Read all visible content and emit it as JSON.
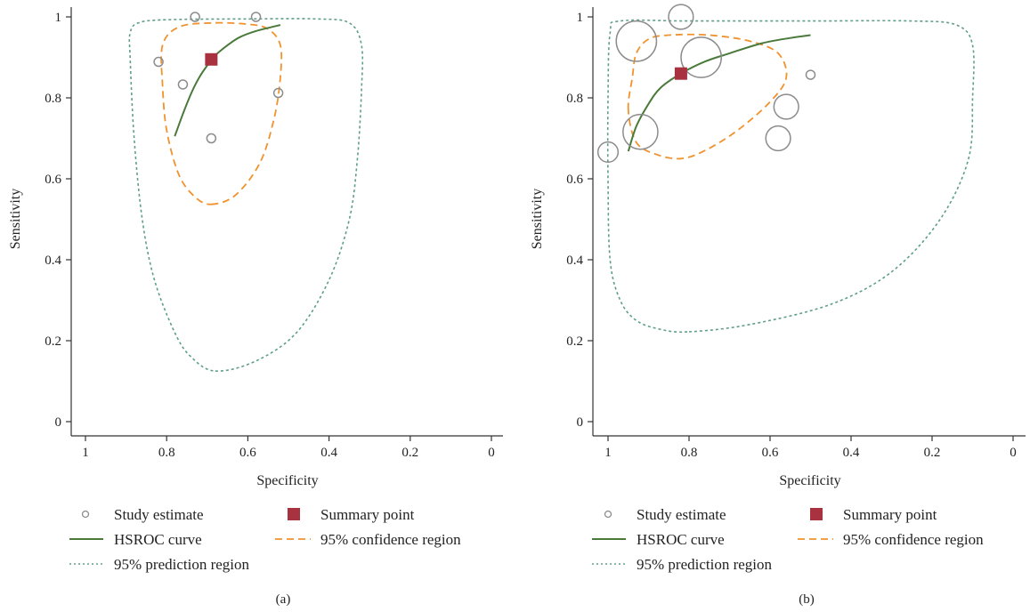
{
  "colors": {
    "study": "#8c8c8c",
    "summary": "#a83240",
    "hsroc": "#4a7a3a",
    "confidence": "#f0922e",
    "prediction": "#5f9e8c",
    "axis": "#333333"
  },
  "chart_data": [
    {
      "type": "scatter",
      "panel_label": "(a)",
      "xlabel": "Specificity",
      "ylabel": "Sensitivity",
      "xlim": [
        1,
        0
      ],
      "ylim": [
        0,
        1
      ],
      "x_ticks": [
        "1",
        "0.8",
        "0.6",
        "0.4",
        "0.2",
        "0"
      ],
      "y_ticks": [
        "0",
        "0.2",
        "0.4",
        "0.6",
        "0.8",
        "1"
      ],
      "grid": false,
      "legend_placement": "bottom",
      "legend": {
        "study": "Study estimate",
        "summary": "Summary point",
        "hsroc": "HSROC curve",
        "confidence": "95% confidence region",
        "prediction": "95% prediction region"
      },
      "study_estimates": [
        {
          "specificity": 0.73,
          "sensitivity": 1.0,
          "weight": 1
        },
        {
          "specificity": 0.58,
          "sensitivity": 1.0,
          "weight": 1
        },
        {
          "specificity": 0.82,
          "sensitivity": 0.889,
          "weight": 1
        },
        {
          "specificity": 0.76,
          "sensitivity": 0.833,
          "weight": 1
        },
        {
          "specificity": 0.525,
          "sensitivity": 0.812,
          "weight": 1
        },
        {
          "specificity": 0.69,
          "sensitivity": 0.7,
          "weight": 1
        }
      ],
      "summary_point": {
        "specificity": 0.69,
        "sensitivity": 0.895
      },
      "hsroc_curve": [
        [
          0.78,
          0.705
        ],
        [
          0.76,
          0.76
        ],
        [
          0.74,
          0.81
        ],
        [
          0.72,
          0.85
        ],
        [
          0.7,
          0.88
        ],
        [
          0.68,
          0.905
        ],
        [
          0.65,
          0.93
        ],
        [
          0.62,
          0.95
        ],
        [
          0.58,
          0.965
        ],
        [
          0.52,
          0.98
        ]
      ],
      "confidence_region": [
        [
          0.69,
          0.537
        ],
        [
          0.63,
          0.56
        ],
        [
          0.57,
          0.64
        ],
        [
          0.535,
          0.75
        ],
        [
          0.52,
          0.85
        ],
        [
          0.52,
          0.93
        ],
        [
          0.55,
          0.97
        ],
        [
          0.6,
          0.982
        ],
        [
          0.69,
          0.985
        ],
        [
          0.77,
          0.975
        ],
        [
          0.81,
          0.93
        ],
        [
          0.81,
          0.83
        ],
        [
          0.8,
          0.72
        ],
        [
          0.77,
          0.61
        ],
        [
          0.73,
          0.555
        ]
      ],
      "prediction_region": [
        [
          0.68,
          0.125
        ],
        [
          0.58,
          0.15
        ],
        [
          0.48,
          0.22
        ],
        [
          0.4,
          0.35
        ],
        [
          0.35,
          0.5
        ],
        [
          0.33,
          0.65
        ],
        [
          0.32,
          0.82
        ],
        [
          0.32,
          0.93
        ],
        [
          0.35,
          0.985
        ],
        [
          0.43,
          0.995
        ],
        [
          0.6,
          0.995
        ],
        [
          0.8,
          0.993
        ],
        [
          0.87,
          0.985
        ],
        [
          0.89,
          0.96
        ],
        [
          0.89,
          0.9
        ],
        [
          0.88,
          0.7
        ],
        [
          0.86,
          0.5
        ],
        [
          0.83,
          0.35
        ],
        [
          0.78,
          0.22
        ],
        [
          0.74,
          0.16
        ]
      ]
    },
    {
      "type": "scatter",
      "panel_label": "(b)",
      "xlabel": "Specificity",
      "ylabel": "Sensitivity",
      "xlim": [
        1,
        0
      ],
      "ylim": [
        0,
        1
      ],
      "x_ticks": [
        "1",
        "0.8",
        "0.6",
        "0.4",
        "0.2",
        "0"
      ],
      "y_ticks": [
        "0",
        "0.2",
        "0.4",
        "0.6",
        "0.8",
        "1"
      ],
      "grid": false,
      "legend_placement": "bottom",
      "legend": {
        "study": "Study estimate",
        "summary": "Summary point",
        "hsroc": "HSROC curve",
        "confidence": "95% confidence region",
        "prediction": "95% prediction region"
      },
      "study_estimates": [
        {
          "specificity": 0.82,
          "sensitivity": 1.0,
          "weight": 3
        },
        {
          "specificity": 0.93,
          "sensitivity": 0.94,
          "weight": 8
        },
        {
          "specificity": 0.77,
          "sensitivity": 0.9,
          "weight": 8
        },
        {
          "specificity": 0.5,
          "sensitivity": 0.857,
          "weight": 1
        },
        {
          "specificity": 0.56,
          "sensitivity": 0.778,
          "weight": 3
        },
        {
          "specificity": 0.92,
          "sensitivity": 0.716,
          "weight": 6
        },
        {
          "specificity": 0.58,
          "sensitivity": 0.7,
          "weight": 3
        },
        {
          "specificity": 1.0,
          "sensitivity": 0.666,
          "weight": 2
        }
      ],
      "summary_point": {
        "specificity": 0.82,
        "sensitivity": 0.86
      },
      "hsroc_curve": [
        [
          0.95,
          0.668
        ],
        [
          0.93,
          0.73
        ],
        [
          0.9,
          0.785
        ],
        [
          0.87,
          0.825
        ],
        [
          0.82,
          0.86
        ],
        [
          0.76,
          0.89
        ],
        [
          0.7,
          0.91
        ],
        [
          0.62,
          0.935
        ],
        [
          0.55,
          0.948
        ],
        [
          0.5,
          0.955
        ]
      ],
      "confidence_region": [
        [
          0.95,
          0.77
        ],
        [
          0.94,
          0.85
        ],
        [
          0.93,
          0.91
        ],
        [
          0.9,
          0.945
        ],
        [
          0.85,
          0.955
        ],
        [
          0.75,
          0.955
        ],
        [
          0.65,
          0.94
        ],
        [
          0.58,
          0.91
        ],
        [
          0.56,
          0.85
        ],
        [
          0.6,
          0.79
        ],
        [
          0.68,
          0.72
        ],
        [
          0.76,
          0.67
        ],
        [
          0.82,
          0.65
        ],
        [
          0.88,
          0.66
        ],
        [
          0.93,
          0.69
        ]
      ],
      "prediction_region": [
        [
          0.8,
          0.222
        ],
        [
          0.65,
          0.24
        ],
        [
          0.45,
          0.29
        ],
        [
          0.3,
          0.37
        ],
        [
          0.18,
          0.5
        ],
        [
          0.11,
          0.65
        ],
        [
          0.1,
          0.8
        ],
        [
          0.1,
          0.93
        ],
        [
          0.14,
          0.98
        ],
        [
          0.25,
          0.99
        ],
        [
          0.5,
          0.99
        ],
        [
          0.8,
          0.99
        ],
        [
          0.97,
          0.99
        ],
        [
          0.995,
          0.96
        ],
        [
          1.0,
          0.8
        ],
        [
          1.0,
          0.6
        ],
        [
          0.995,
          0.4
        ],
        [
          0.97,
          0.3
        ],
        [
          0.93,
          0.25
        ],
        [
          0.87,
          0.228
        ]
      ]
    }
  ]
}
